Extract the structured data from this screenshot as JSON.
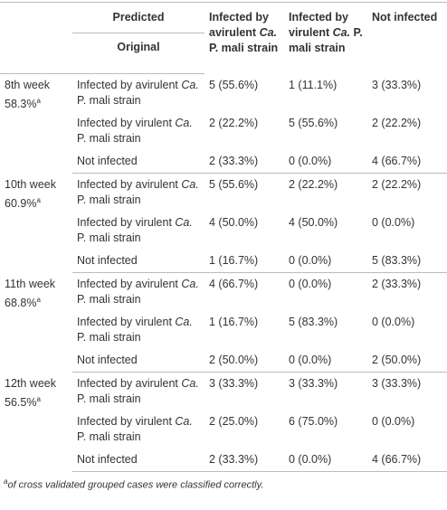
{
  "header": {
    "predicted": "Predicted",
    "original": "Original",
    "columns": [
      {
        "parts": [
          {
            "text": "Infected by avirulent "
          },
          {
            "text": "Ca.",
            "italic": true
          },
          {
            "text": " P. mali strain"
          }
        ]
      },
      {
        "parts": [
          {
            "text": "Infected by virulent "
          },
          {
            "text": "Ca.",
            "italic": true
          },
          {
            "text": " P. mali strain"
          }
        ]
      },
      {
        "parts": [
          {
            "text": "Not infected"
          }
        ]
      }
    ]
  },
  "groups": [
    {
      "week": "8th week",
      "accuracy": "58.3%",
      "note": "a",
      "rows": [
        {
          "original": [
            {
              "text": "Infected by avirulent "
            },
            {
              "text": "Ca.",
              "italic": true
            },
            {
              "text": " P. mali strain"
            }
          ],
          "cells": [
            "5 (55.6%)",
            "1 (11.1%)",
            "3 (33.3%)"
          ]
        },
        {
          "original": [
            {
              "text": "Infected by virulent "
            },
            {
              "text": "Ca.",
              "italic": true
            },
            {
              "text": " P. mali strain"
            }
          ],
          "cells": [
            "2 (22.2%)",
            "5 (55.6%)",
            "2 (22.2%)"
          ]
        },
        {
          "original": [
            {
              "text": "Not infected"
            }
          ],
          "cells": [
            "2 (33.3%)",
            "0 (0.0%)",
            "4 (66.7%)"
          ]
        }
      ]
    },
    {
      "week": "10th week",
      "accuracy": "60.9%",
      "note": "a",
      "rows": [
        {
          "original": [
            {
              "text": "Infected by avirulent "
            },
            {
              "text": "Ca.",
              "italic": true
            },
            {
              "text": " P. mali strain"
            }
          ],
          "cells": [
            "5 (55.6%)",
            "2 (22.2%)",
            "2 (22.2%)"
          ]
        },
        {
          "original": [
            {
              "text": "Infected by virulent "
            },
            {
              "text": "Ca.",
              "italic": true
            },
            {
              "text": " P. mali strain"
            }
          ],
          "cells": [
            "4 (50.0%)",
            "4 (50.0%)",
            "0 (0.0%)"
          ]
        },
        {
          "original": [
            {
              "text": "Not infected"
            }
          ],
          "cells": [
            "1 (16.7%)",
            "0 (0.0%)",
            "5 (83.3%)"
          ]
        }
      ]
    },
    {
      "week": "11th week",
      "accuracy": "68.8%",
      "note": "a",
      "rows": [
        {
          "original": [
            {
              "text": "Infected by avirulent "
            },
            {
              "text": "Ca.",
              "italic": true
            },
            {
              "text": " P. mali strain"
            }
          ],
          "cells": [
            "4 (66.7%)",
            "0 (0.0%)",
            "2 (33.3%)"
          ]
        },
        {
          "original": [
            {
              "text": "Infected by virulent "
            },
            {
              "text": "Ca.",
              "italic": true
            },
            {
              "text": " P. mali strain"
            }
          ],
          "cells": [
            "1 (16.7%)",
            "5 (83.3%)",
            "0 (0.0%)"
          ]
        },
        {
          "original": [
            {
              "text": "Not infected"
            }
          ],
          "cells": [
            "2 (50.0%)",
            "0 (0.0%)",
            "2 (50.0%)"
          ]
        }
      ]
    },
    {
      "week": "12th week",
      "accuracy": "56.5%",
      "note": "a",
      "rows": [
        {
          "original": [
            {
              "text": "Infected by avirulent "
            },
            {
              "text": "Ca.",
              "italic": true
            },
            {
              "text": " P. mali strain"
            }
          ],
          "cells": [
            "3 (33.3%)",
            "3 (33.3%)",
            "3 (33.3%)"
          ]
        },
        {
          "original": [
            {
              "text": "Infected by virulent "
            },
            {
              "text": "Ca.",
              "italic": true
            },
            {
              "text": " P. mali strain"
            }
          ],
          "cells": [
            "2 (25.0%)",
            "6 (75.0%)",
            "0 (0.0%)"
          ]
        },
        {
          "original": [
            {
              "text": "Not infected"
            }
          ],
          "cells": [
            "2 (33.3%)",
            "0 (0.0%)",
            "4 (66.7%)"
          ]
        }
      ]
    }
  ],
  "footnote": {
    "mark": "a",
    "text": "of cross validated grouped cases were classified correctly."
  }
}
